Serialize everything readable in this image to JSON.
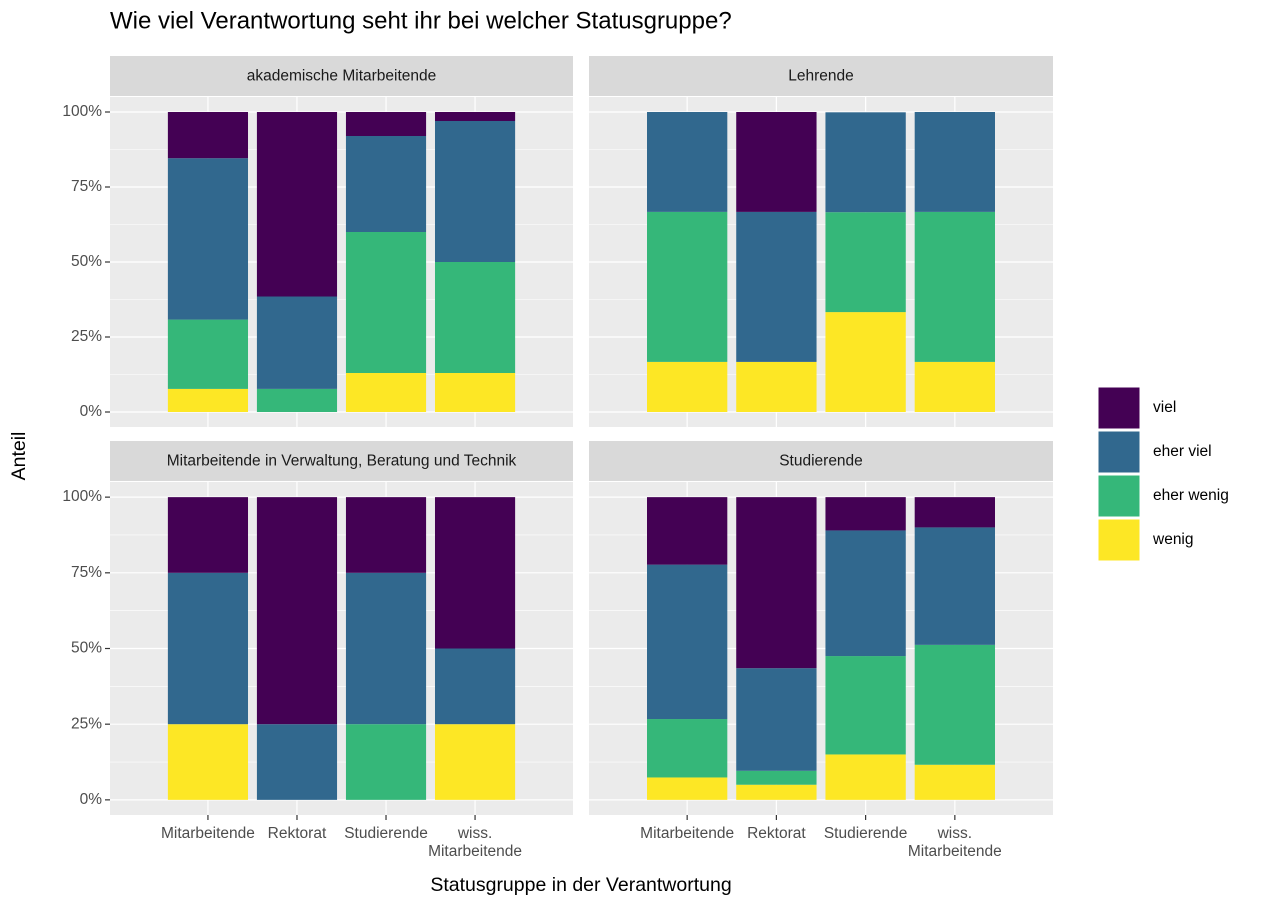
{
  "title": "Wie viel Verantwortung seht ihr bei welcher Statusgruppe?",
  "x_label": "Statusgruppe in der Verantwortung",
  "y_label": "Anteil",
  "chart_data": [
    {
      "type": "bar",
      "stacked": true,
      "title": "akademische Mitarbeitende",
      "categories": [
        "Mitarbeitende",
        "Rektorat",
        "Studierende",
        "wiss. Mitarbeitende"
      ],
      "series": [
        {
          "name": "viel",
          "color": "#440154",
          "values": [
            15.4,
            61.5,
            8,
            3
          ]
        },
        {
          "name": "eher viel",
          "color": "#31688e",
          "values": [
            53.8,
            30.8,
            32,
            47
          ]
        },
        {
          "name": "eher wenig",
          "color": "#35b779",
          "values": [
            23.1,
            7.7,
            47,
            37
          ]
        },
        {
          "name": "wenig",
          "color": "#fde725",
          "values": [
            7.7,
            0,
            13,
            13
          ]
        }
      ],
      "ylim": [
        0,
        100
      ],
      "yticks": [
        {
          "value": 0,
          "label": "0%"
        },
        {
          "value": 25,
          "label": "25%"
        },
        {
          "value": 50,
          "label": "50%"
        },
        {
          "value": 75,
          "label": "75%"
        },
        {
          "value": 100,
          "label": "100%"
        }
      ]
    },
    {
      "type": "bar",
      "stacked": true,
      "title": "Lehrende",
      "categories": [
        "Mitarbeitende",
        "Rektorat",
        "Studierende",
        "wiss. Mitarbeitende"
      ],
      "series": [
        {
          "name": "viel",
          "color": "#440154",
          "values": [
            0,
            33.3,
            0,
            0
          ]
        },
        {
          "name": "eher viel",
          "color": "#31688e",
          "values": [
            33.3,
            50,
            33.3,
            33.3
          ]
        },
        {
          "name": "eher wenig",
          "color": "#35b779",
          "values": [
            50,
            0,
            33.3,
            50
          ]
        },
        {
          "name": "wenig",
          "color": "#fde725",
          "values": [
            16.7,
            16.7,
            33.3,
            16.7
          ]
        }
      ],
      "ylim": [
        0,
        100
      ],
      "yticks": [
        {
          "value": 0,
          "label": "0%"
        },
        {
          "value": 25,
          "label": "25%"
        },
        {
          "value": 50,
          "label": "50%"
        },
        {
          "value": 75,
          "label": "75%"
        },
        {
          "value": 100,
          "label": "100%"
        }
      ]
    },
    {
      "type": "bar",
      "stacked": true,
      "title": "Mitarbeitende in Verwaltung, Beratung und Technik",
      "categories": [
        "Mitarbeitende",
        "Rektorat",
        "Studierende",
        "wiss. Mitarbeitende"
      ],
      "series": [
        {
          "name": "viel",
          "color": "#440154",
          "values": [
            25,
            75,
            25,
            50
          ]
        },
        {
          "name": "eher viel",
          "color": "#31688e",
          "values": [
            50,
            25,
            50,
            25
          ]
        },
        {
          "name": "eher wenig",
          "color": "#35b779",
          "values": [
            0,
            0,
            25,
            0
          ]
        },
        {
          "name": "wenig",
          "color": "#fde725",
          "values": [
            25,
            0,
            0,
            25
          ]
        }
      ],
      "ylim": [
        0,
        100
      ],
      "yticks": [
        {
          "value": 0,
          "label": "0%"
        },
        {
          "value": 25,
          "label": "25%"
        },
        {
          "value": 50,
          "label": "50%"
        },
        {
          "value": 75,
          "label": "75%"
        },
        {
          "value": 100,
          "label": "100%"
        }
      ]
    },
    {
      "type": "bar",
      "stacked": true,
      "title": "Studierende",
      "categories": [
        "Mitarbeitende",
        "Rektorat",
        "Studierende",
        "wiss. Mitarbeitende"
      ],
      "series": [
        {
          "name": "viel",
          "color": "#440154",
          "values": [
            22.3,
            56.5,
            11,
            10
          ]
        },
        {
          "name": "eher viel",
          "color": "#31688e",
          "values": [
            51,
            33.9,
            41.5,
            38.8
          ]
        },
        {
          "name": "eher wenig",
          "color": "#35b779",
          "values": [
            19.3,
            4.6,
            32.5,
            39.6
          ]
        },
        {
          "name": "wenig",
          "color": "#fde725",
          "values": [
            7.4,
            5,
            15,
            11.6
          ]
        }
      ],
      "ylim": [
        0,
        100
      ],
      "yticks": [
        {
          "value": 0,
          "label": "0%"
        },
        {
          "value": 25,
          "label": "25%"
        },
        {
          "value": 50,
          "label": "50%"
        },
        {
          "value": 75,
          "label": "75%"
        },
        {
          "value": 100,
          "label": "100%"
        }
      ]
    }
  ]
}
